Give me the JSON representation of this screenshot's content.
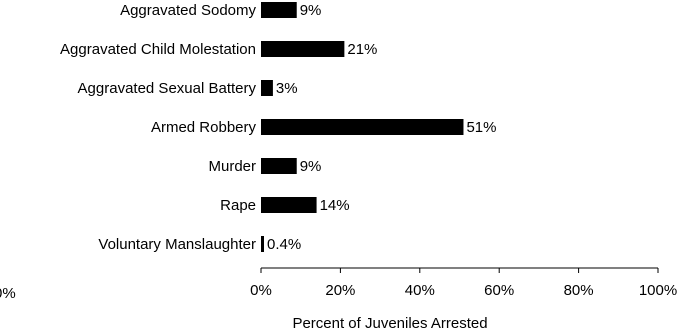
{
  "chart_data": {
    "type": "bar",
    "orientation": "horizontal",
    "categories": [
      "Aggravated Sodomy",
      "Aggravated Child Molestation",
      "Aggravated Sexual Battery",
      "Armed Robbery",
      "Murder",
      "Rape",
      "Voluntary Manslaughter"
    ],
    "values": [
      9,
      21,
      3,
      51,
      9,
      14,
      0.4
    ],
    "value_labels": [
      "9%",
      "21%",
      "3%",
      "51%",
      "9%",
      "14%",
      "0.4%"
    ],
    "xlabel": "Percent of Juveniles Arrested",
    "ylabel": "",
    "xlim": [
      0,
      100
    ],
    "xticks": [
      0,
      20,
      40,
      60,
      80,
      100
    ],
    "xtick_labels": [
      "0%",
      "20%",
      "40%",
      "60%",
      "80%",
      "100%"
    ],
    "stray_tick_label": "0%",
    "grid": false,
    "bar_color": "#000000"
  }
}
